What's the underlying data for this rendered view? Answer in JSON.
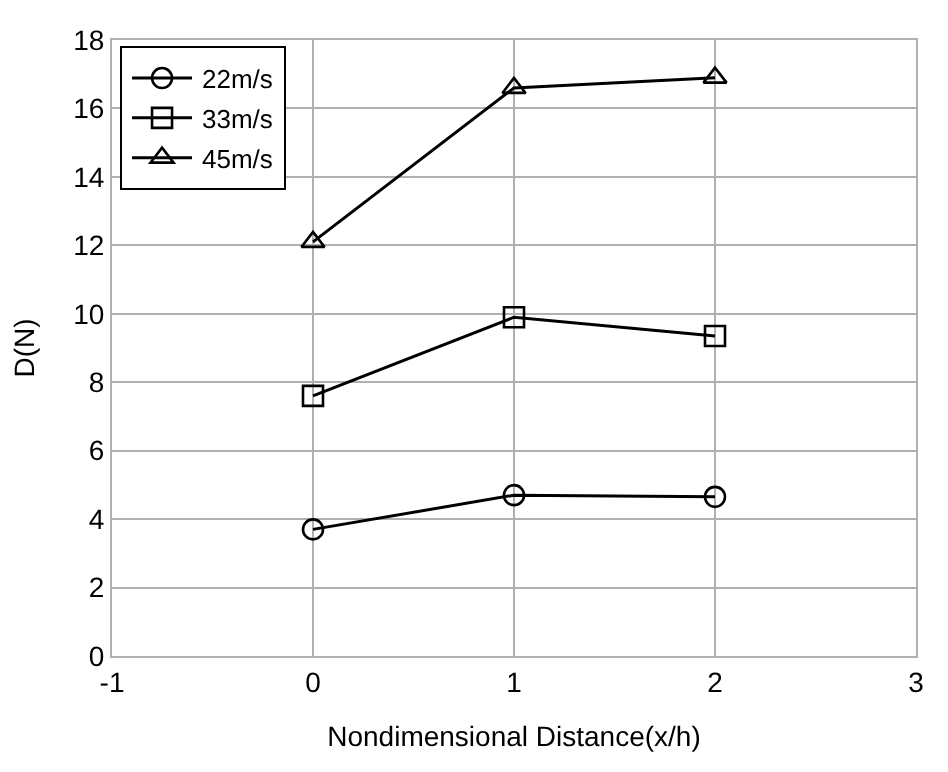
{
  "chart_data": {
    "type": "line",
    "xlabel": "Nondimensional Distance(x/h)",
    "ylabel": "D(N)",
    "x": [
      0,
      1,
      2
    ],
    "series": [
      {
        "name": "22m/s",
        "color": "#000000",
        "marker": "circle",
        "values": [
          3.7,
          4.7,
          4.65
        ]
      },
      {
        "name": "33m/s",
        "color": "#000000",
        "marker": "square",
        "values": [
          7.6,
          9.9,
          9.35
        ]
      },
      {
        "name": "45m/s",
        "color": "#000000",
        "marker": "triangle",
        "values": [
          12.1,
          16.6,
          16.9
        ]
      }
    ],
    "xlim": [
      -1,
      3
    ],
    "xticks": [
      -1,
      0,
      1,
      2,
      3
    ],
    "ylim": [
      0,
      18
    ],
    "yticks": [
      0,
      2,
      4,
      6,
      8,
      10,
      12,
      14,
      16,
      18
    ],
    "grid": true,
    "legend": "top left",
    "line_style": "solid"
  }
}
